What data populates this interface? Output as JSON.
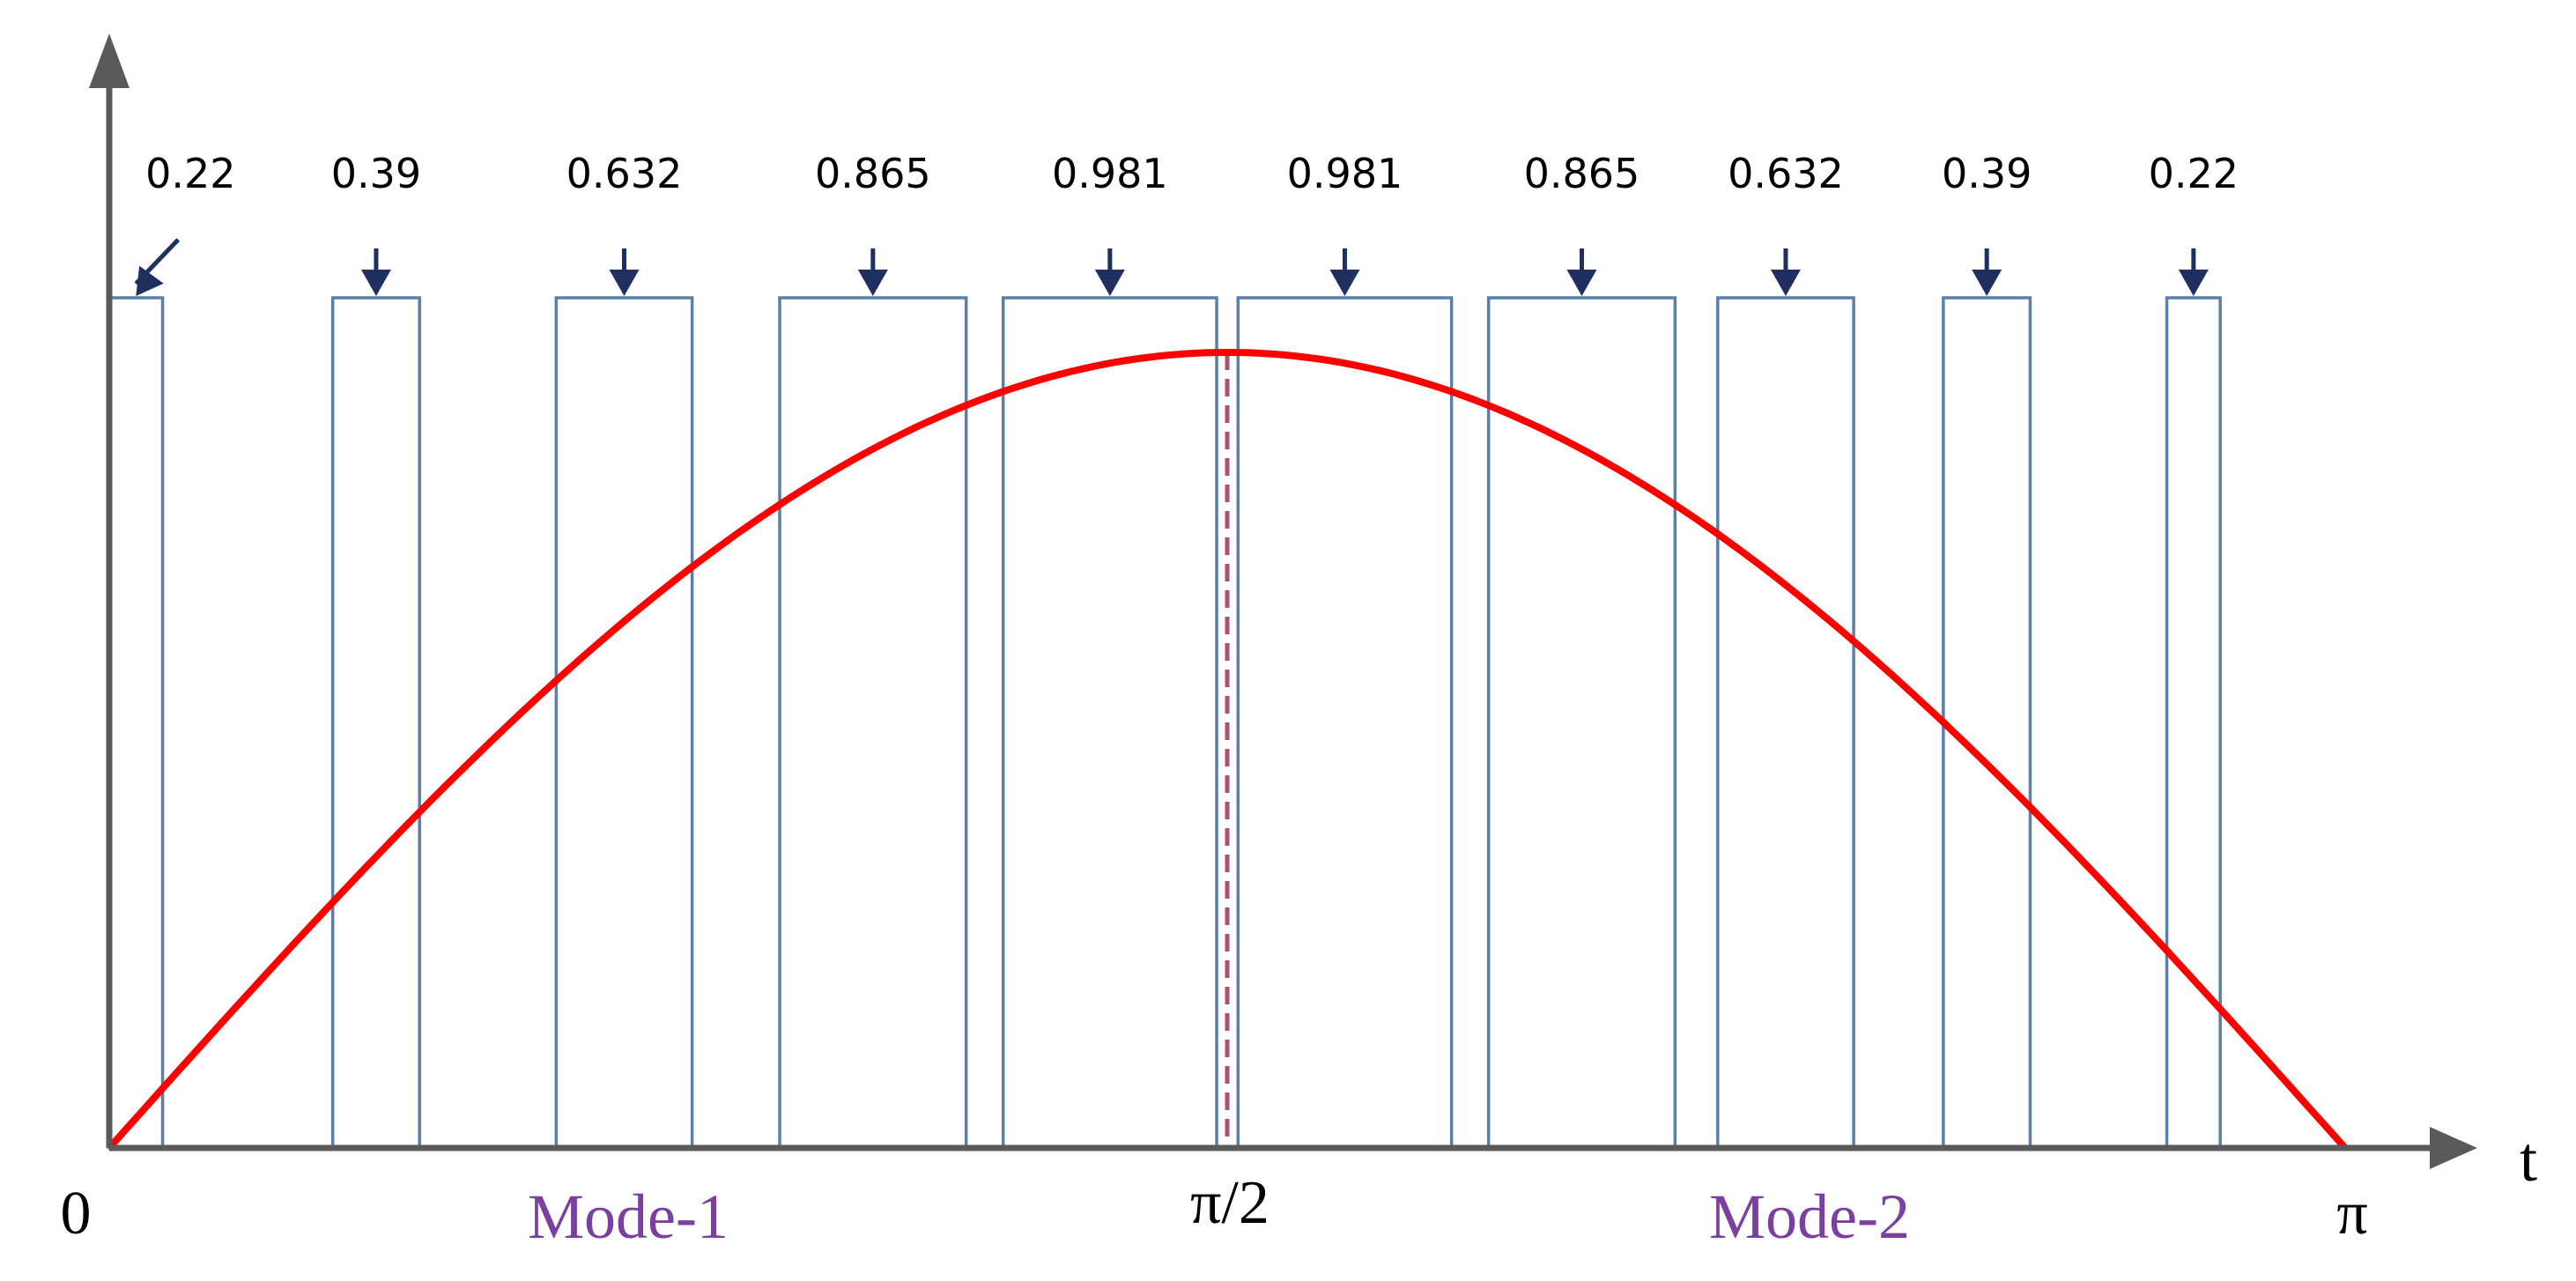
{
  "chart_data": {
    "type": "bar",
    "x_axis_label": "t",
    "x_tick_labels": {
      "zero": "0",
      "half": "π/2",
      "end": "π"
    },
    "curve": {
      "function": "sin(t)",
      "x_range": [
        0,
        3.14159
      ],
      "color": "#ff0000"
    },
    "pulses": [
      {
        "label": "0.22",
        "start": 0.0,
        "end": 0.075
      },
      {
        "label": "0.39",
        "start": 0.314,
        "end": 0.436
      },
      {
        "label": "0.632",
        "start": 0.628,
        "end": 0.819
      },
      {
        "label": "0.865",
        "start": 0.942,
        "end": 1.204
      },
      {
        "label": "0.981",
        "start": 1.256,
        "end": 1.556
      },
      {
        "label": "0.981",
        "start": 1.586,
        "end": 1.886
      },
      {
        "label": "0.865",
        "start": 1.938,
        "end": 2.2
      },
      {
        "label": "0.632",
        "start": 2.26,
        "end": 2.451
      },
      {
        "label": "0.39",
        "start": 2.577,
        "end": 2.699
      },
      {
        "label": "0.22",
        "start": 2.891,
        "end": 2.966
      }
    ],
    "midline": {
      "x": 1.5708,
      "style": "dashed"
    },
    "modes": [
      {
        "label": "Mode-1",
        "color": "#7a3fa0"
      },
      {
        "label": "Mode-2",
        "color": "#7a3fa0"
      }
    ],
    "colors": {
      "pulse": "#5b7fa8",
      "arrow": "#1f2f5f",
      "axis": "#5a5a5a"
    }
  }
}
